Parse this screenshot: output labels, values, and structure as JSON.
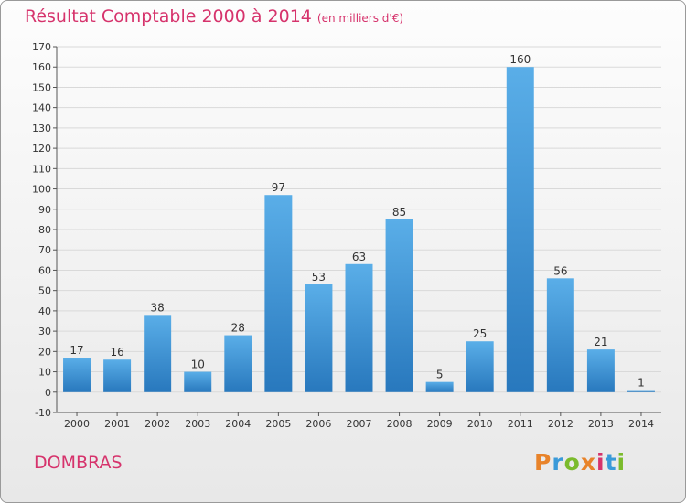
{
  "header": {
    "title": "Résultat Comptable 2000 à 2014",
    "subtitle": "(en milliers d'€)"
  },
  "footer": {
    "town": "DOMBRAS",
    "logo_text": "Proxiti"
  },
  "colors": {
    "title": "#d6336c",
    "bar_top": "#5aaee8",
    "bar_bottom": "#2878bd",
    "axis": "#555555",
    "grid": "#d9d9d9",
    "logo": [
      "#e8832a",
      "#3a9ad9",
      "#7bbb2c",
      "#e8832a",
      "#d6336c",
      "#3a9ad9",
      "#7bbb2c"
    ]
  },
  "chart_data": {
    "type": "bar",
    "title": "Résultat Comptable 2000 à 2014",
    "xlabel": "",
    "ylabel": "",
    "categories": [
      "2000",
      "2001",
      "2002",
      "2003",
      "2004",
      "2005",
      "2006",
      "2007",
      "2008",
      "2009",
      "2010",
      "2011",
      "2012",
      "2013",
      "2014"
    ],
    "values": [
      17,
      16,
      38,
      10,
      28,
      97,
      53,
      63,
      85,
      5,
      25,
      160,
      56,
      21,
      1
    ],
    "ylim": [
      -10,
      170
    ],
    "yticks": [
      -10,
      0,
      10,
      20,
      30,
      40,
      50,
      60,
      70,
      80,
      90,
      100,
      110,
      120,
      130,
      140,
      150,
      160,
      170
    ],
    "grid": true,
    "data_labels": true
  }
}
